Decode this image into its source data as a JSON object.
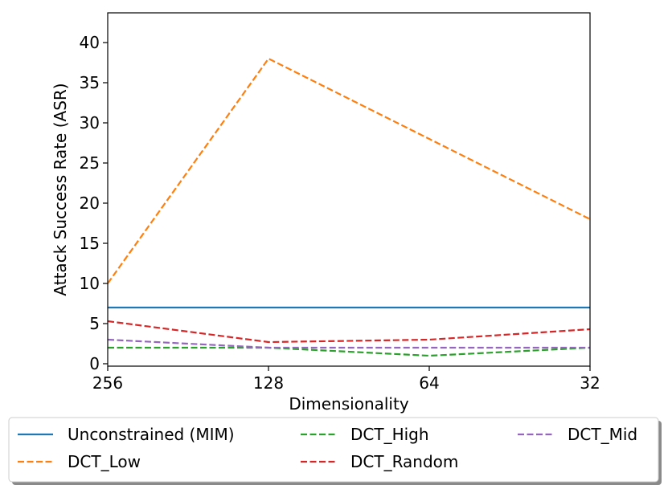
{
  "chart_data": {
    "type": "line",
    "title": "",
    "xlabel": "Dimensionality",
    "ylabel": "Attack Success Rate (ASR)",
    "categories": [
      "256",
      "128",
      "64",
      "32"
    ],
    "ylim": [
      -0.3,
      43.7
    ],
    "yticks": [
      "0",
      "5",
      "10",
      "15",
      "20",
      "25",
      "30",
      "35",
      "40"
    ],
    "grid": false,
    "legend_position": "bottom-center",
    "series": [
      {
        "name": "Unconstrained (MIM)",
        "color": "#1f77b4",
        "style": "solid",
        "values": [
          7.0,
          7.0,
          7.0,
          7.0
        ]
      },
      {
        "name": "DCT_Low",
        "color": "#ff7f0e",
        "style": "dashed",
        "values": [
          10.0,
          38.0,
          28.0,
          18.0
        ]
      },
      {
        "name": "DCT_High",
        "color": "#2ca02c",
        "style": "dashed",
        "values": [
          2.0,
          2.0,
          1.0,
          2.0
        ]
      },
      {
        "name": "DCT_Random",
        "color": "#d62728",
        "style": "dashed",
        "values": [
          5.3,
          2.7,
          3.0,
          4.3
        ]
      },
      {
        "name": "DCT_Mid",
        "color": "#9467bd",
        "style": "dashed",
        "values": [
          3.0,
          2.0,
          2.0,
          2.0
        ]
      }
    ]
  }
}
